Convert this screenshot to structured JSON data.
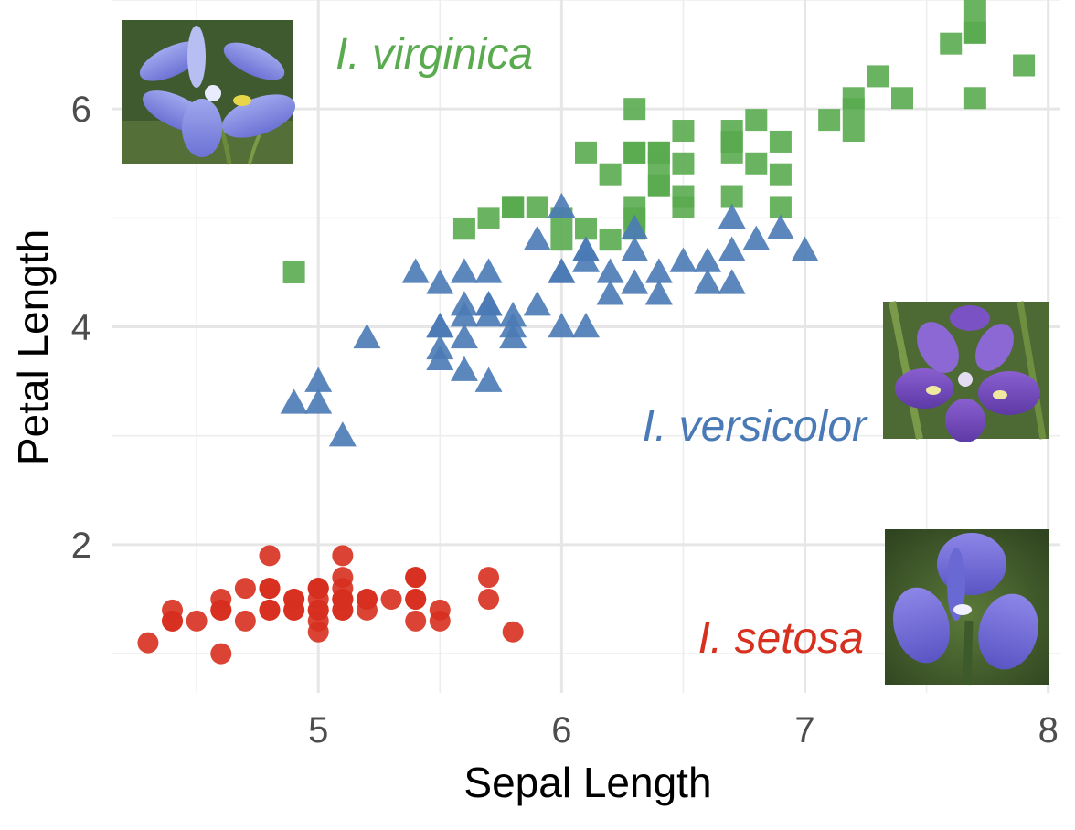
{
  "chart_data": {
    "type": "scatter",
    "xlabel": "Sepal Length",
    "ylabel": "Petal Length",
    "xlim": [
      4.15,
      8.05
    ],
    "ylim": [
      0.64,
      7.0
    ],
    "x_ticks": [
      5,
      6,
      7,
      8
    ],
    "x_tick_labels": [
      "5",
      "6",
      "7",
      "8"
    ],
    "y_ticks": [
      2,
      4,
      6
    ],
    "y_tick_labels": [
      "2",
      "4",
      "6"
    ],
    "grid": true,
    "legend": "none",
    "series": [
      {
        "name": "I. setosa",
        "marker": "circle",
        "color": "#d7301f",
        "points": [
          [
            5.1,
            1.4
          ],
          [
            4.9,
            1.4
          ],
          [
            4.7,
            1.3
          ],
          [
            4.6,
            1.5
          ],
          [
            5.0,
            1.4
          ],
          [
            5.4,
            1.7
          ],
          [
            4.6,
            1.4
          ],
          [
            5.0,
            1.5
          ],
          [
            4.4,
            1.4
          ],
          [
            4.9,
            1.5
          ],
          [
            5.4,
            1.5
          ],
          [
            4.8,
            1.6
          ],
          [
            4.8,
            1.4
          ],
          [
            4.3,
            1.1
          ],
          [
            5.8,
            1.2
          ],
          [
            5.7,
            1.5
          ],
          [
            5.4,
            1.3
          ],
          [
            5.1,
            1.4
          ],
          [
            5.7,
            1.7
          ],
          [
            5.1,
            1.5
          ],
          [
            5.4,
            1.7
          ],
          [
            5.1,
            1.5
          ],
          [
            4.6,
            1.0
          ],
          [
            5.1,
            1.7
          ],
          [
            4.8,
            1.9
          ],
          [
            5.0,
            1.6
          ],
          [
            5.0,
            1.6
          ],
          [
            5.2,
            1.5
          ],
          [
            5.2,
            1.4
          ],
          [
            4.7,
            1.6
          ],
          [
            4.8,
            1.6
          ],
          [
            5.4,
            1.5
          ],
          [
            5.2,
            1.5
          ],
          [
            5.5,
            1.4
          ],
          [
            4.9,
            1.5
          ],
          [
            5.0,
            1.2
          ],
          [
            5.5,
            1.3
          ],
          [
            4.9,
            1.4
          ],
          [
            4.4,
            1.3
          ],
          [
            5.1,
            1.5
          ],
          [
            5.0,
            1.3
          ],
          [
            4.5,
            1.3
          ],
          [
            4.4,
            1.3
          ],
          [
            5.0,
            1.6
          ],
          [
            5.1,
            1.9
          ],
          [
            4.8,
            1.4
          ],
          [
            5.1,
            1.6
          ],
          [
            4.6,
            1.4
          ],
          [
            5.3,
            1.5
          ],
          [
            5.0,
            1.4
          ]
        ]
      },
      {
        "name": "I. versicolor",
        "marker": "triangle",
        "color": "#4a7ab5",
        "points": [
          [
            7.0,
            4.7
          ],
          [
            6.4,
            4.5
          ],
          [
            6.9,
            4.9
          ],
          [
            5.5,
            4.0
          ],
          [
            6.5,
            4.6
          ],
          [
            5.7,
            4.5
          ],
          [
            6.3,
            4.7
          ],
          [
            4.9,
            3.3
          ],
          [
            6.6,
            4.6
          ],
          [
            5.2,
            3.9
          ],
          [
            5.0,
            3.5
          ],
          [
            5.9,
            4.2
          ],
          [
            6.0,
            4.0
          ],
          [
            6.1,
            4.7
          ],
          [
            5.6,
            3.6
          ],
          [
            6.7,
            4.4
          ],
          [
            5.6,
            4.5
          ],
          [
            5.8,
            4.1
          ],
          [
            6.2,
            4.5
          ],
          [
            5.6,
            3.9
          ],
          [
            5.9,
            4.8
          ],
          [
            6.1,
            4.0
          ],
          [
            6.3,
            4.9
          ],
          [
            6.1,
            4.7
          ],
          [
            6.4,
            4.3
          ],
          [
            6.6,
            4.4
          ],
          [
            6.8,
            4.8
          ],
          [
            6.7,
            5.0
          ],
          [
            6.0,
            4.5
          ],
          [
            5.7,
            3.5
          ],
          [
            5.5,
            3.8
          ],
          [
            5.5,
            3.7
          ],
          [
            5.8,
            3.9
          ],
          [
            6.0,
            5.1
          ],
          [
            5.4,
            4.5
          ],
          [
            6.0,
            4.5
          ],
          [
            6.7,
            4.7
          ],
          [
            6.3,
            4.4
          ],
          [
            5.6,
            4.1
          ],
          [
            5.5,
            4.0
          ],
          [
            5.5,
            4.4
          ],
          [
            6.1,
            4.6
          ],
          [
            5.8,
            4.0
          ],
          [
            5.0,
            3.3
          ],
          [
            5.6,
            4.2
          ],
          [
            5.7,
            4.2
          ],
          [
            5.7,
            4.2
          ],
          [
            6.2,
            4.3
          ],
          [
            5.1,
            3.0
          ],
          [
            5.7,
            4.1
          ]
        ]
      },
      {
        "name": "I. virginica",
        "marker": "square",
        "color": "#5aab4f",
        "points": [
          [
            6.3,
            6.0
          ],
          [
            5.8,
            5.1
          ],
          [
            7.1,
            5.9
          ],
          [
            6.3,
            5.6
          ],
          [
            6.5,
            5.8
          ],
          [
            7.6,
            6.6
          ],
          [
            4.9,
            4.5
          ],
          [
            7.3,
            6.3
          ],
          [
            6.7,
            5.8
          ],
          [
            7.2,
            6.1
          ],
          [
            6.5,
            5.1
          ],
          [
            6.4,
            5.3
          ],
          [
            6.8,
            5.5
          ],
          [
            5.7,
            5.0
          ],
          [
            5.8,
            5.1
          ],
          [
            6.4,
            5.3
          ],
          [
            6.5,
            5.5
          ],
          [
            7.7,
            6.7
          ],
          [
            7.7,
            6.9
          ],
          [
            6.0,
            5.0
          ],
          [
            6.9,
            5.7
          ],
          [
            5.6,
            4.9
          ],
          [
            7.7,
            6.7
          ],
          [
            6.3,
            4.9
          ],
          [
            6.7,
            5.7
          ],
          [
            7.2,
            6.0
          ],
          [
            6.2,
            4.8
          ],
          [
            6.1,
            4.9
          ],
          [
            6.4,
            5.6
          ],
          [
            7.2,
            5.8
          ],
          [
            7.4,
            6.1
          ],
          [
            7.9,
            6.4
          ],
          [
            6.4,
            5.6
          ],
          [
            6.3,
            5.1
          ],
          [
            6.1,
            5.6
          ],
          [
            7.7,
            6.1
          ],
          [
            6.3,
            5.6
          ],
          [
            6.4,
            5.5
          ],
          [
            6.0,
            4.8
          ],
          [
            6.9,
            5.4
          ],
          [
            6.7,
            5.6
          ],
          [
            6.9,
            5.1
          ],
          [
            5.8,
            5.1
          ],
          [
            6.8,
            5.9
          ],
          [
            6.7,
            5.7
          ],
          [
            6.7,
            5.2
          ],
          [
            6.3,
            5.0
          ],
          [
            6.5,
            5.2
          ],
          [
            6.2,
            5.4
          ],
          [
            5.9,
            5.1
          ]
        ]
      }
    ]
  },
  "annotations": {
    "virginica": {
      "text": "I. virginica",
      "color": "#5aab4f"
    },
    "versicolor": {
      "text": "I. versicolor",
      "color": "#4a7ab5"
    },
    "setosa": {
      "text": "I. setosa",
      "color": "#d7301f"
    }
  },
  "photos": {
    "virginica": "iris-virginica-flower-photo",
    "versicolor": "iris-versicolor-flower-photo",
    "setosa": "iris-setosa-flower-photo"
  }
}
